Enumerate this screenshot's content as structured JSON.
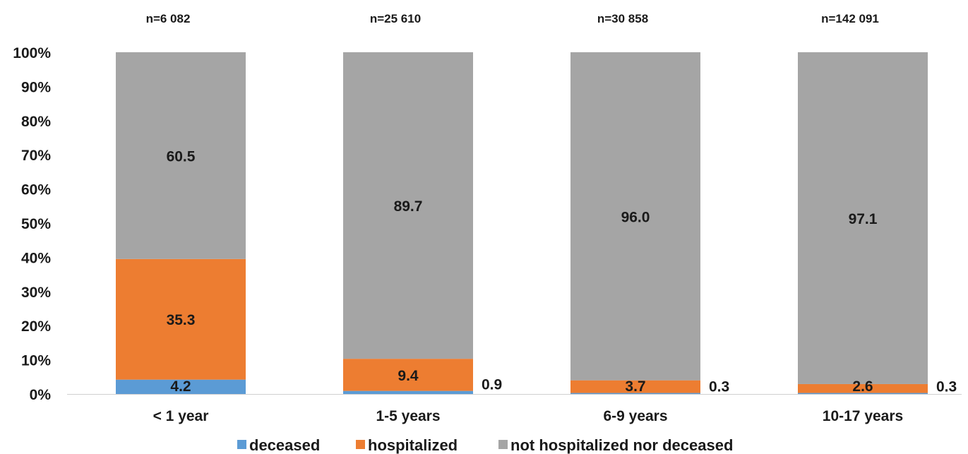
{
  "chart_data": {
    "type": "bar",
    "stacked": true,
    "percent_stacked": true,
    "categories": [
      "< 1  year",
      "1-5 years",
      "6-9 years",
      "10-17 years"
    ],
    "totals": [
      "n=6 082",
      "n=25 610",
      "n=30 858",
      "n=142 091"
    ],
    "series": [
      {
        "name": "deceased",
        "color": "#5b9bd5",
        "values": [
          4.2,
          0.9,
          0.3,
          0.3
        ],
        "labels": [
          "4.2",
          "0.9",
          "0.3",
          "0.3"
        ]
      },
      {
        "name": "hospitalized",
        "color": "#ed7d31",
        "values": [
          35.3,
          9.4,
          3.7,
          2.6
        ],
        "labels": [
          "35.3",
          "9.4",
          "3.7",
          "2.6"
        ]
      },
      {
        "name": "not hospitalized nor deceased",
        "color": "#a5a5a5",
        "values": [
          60.5,
          89.7,
          96.0,
          97.1
        ],
        "labels": [
          "60.5",
          "89.7",
          "96.0",
          "97.1"
        ]
      }
    ],
    "yticks": [
      "0%",
      "10%",
      "20%",
      "30%",
      "40%",
      "50%",
      "60%",
      "70%",
      "80%",
      "90%",
      "100%"
    ],
    "ylim": [
      0,
      100
    ],
    "title": "",
    "xlabel": "",
    "ylabel": "",
    "grid": false,
    "legend_position": "bottom"
  }
}
